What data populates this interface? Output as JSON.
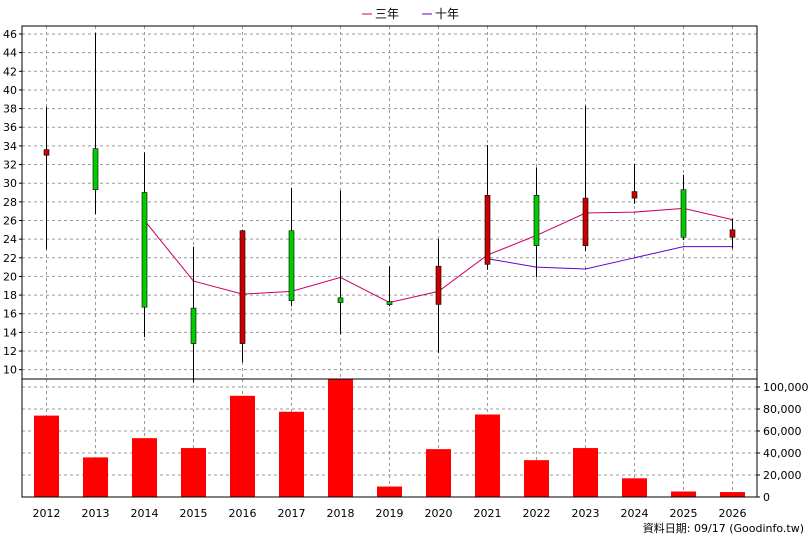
{
  "chart_data": {
    "type": "candlestick+bar",
    "categories": [
      "2012",
      "2013",
      "2014",
      "2015",
      "2016",
      "2017",
      "2018",
      "2019",
      "2020",
      "2021",
      "2022",
      "2023",
      "2024",
      "2025",
      "2026"
    ],
    "legend": [
      {
        "name": "三年",
        "color": "#cc0066"
      },
      {
        "name": "十年",
        "color": "#6600cc"
      }
    ],
    "price_axis": {
      "ylim": [
        10,
        46
      ],
      "ticks": [
        10,
        12,
        14,
        16,
        18,
        20,
        22,
        24,
        26,
        28,
        30,
        32,
        34,
        36,
        38,
        40,
        42,
        44,
        46
      ]
    },
    "volume_axis": {
      "ylim": [
        0,
        100000
      ],
      "ticks": [
        0,
        20000,
        40000,
        60000,
        80000,
        100000
      ],
      "tick_labels": [
        "0",
        "20,000",
        "40,000",
        "60,000",
        "80,000",
        "100,000"
      ]
    },
    "candles": [
      {
        "year": "2012",
        "open": 33.6,
        "close": 33.0,
        "high": 38.2,
        "low": 22.9
      },
      {
        "year": "2013",
        "open": 29.3,
        "close": 33.7,
        "high": 46.1,
        "low": 26.7
      },
      {
        "year": "2014",
        "open": 16.7,
        "close": 29.0,
        "high": 33.3,
        "low": 13.5
      },
      {
        "year": "2015",
        "open": 12.8,
        "close": 16.6,
        "high": 23.2,
        "low": 8.6
      },
      {
        "year": "2016",
        "open": 24.9,
        "close": 12.8,
        "high": 25.0,
        "low": 10.8
      },
      {
        "year": "2017",
        "open": 17.4,
        "close": 24.9,
        "high": 29.5,
        "low": 16.8
      },
      {
        "year": "2018",
        "open": 17.2,
        "close": 17.7,
        "high": 29.2,
        "low": 13.8
      },
      {
        "year": "2019",
        "open": 17.2,
        "close": 17.3,
        "high": 21.1,
        "low": 16.8
      },
      {
        "year": "2020",
        "open": 21.1,
        "close": 17.0,
        "high": 24.0,
        "low": 11.8
      },
      {
        "year": "2021",
        "open": 28.7,
        "close": 21.3,
        "high": 34.1,
        "low": 20.7
      },
      {
        "year": "2022",
        "open": 23.3,
        "close": 28.7,
        "high": 31.7,
        "low": 19.9
      },
      {
        "year": "2023",
        "open": 28.4,
        "close": 23.3,
        "high": 38.3,
        "low": 22.7
      },
      {
        "year": "2024",
        "open": 29.1,
        "close": 28.4,
        "high": 32.1,
        "low": 27.8
      },
      {
        "year": "2025",
        "open": 24.2,
        "close": 29.3,
        "high": 30.9,
        "low": 23.9
      },
      {
        "year": "2026",
        "open": 25.0,
        "close": 24.2,
        "high": 26.2,
        "low": 23.0
      }
    ],
    "series": [
      {
        "name": "三年",
        "color": "#cc0066",
        "values": [
          null,
          null,
          26.0,
          19.5,
          18.1,
          18.4,
          19.9,
          17.2,
          18.4,
          22.3,
          24.4,
          26.8,
          26.9,
          27.3,
          26.1
        ]
      },
      {
        "name": "十年",
        "color": "#6600cc",
        "values": [
          null,
          null,
          null,
          null,
          null,
          null,
          null,
          null,
          null,
          21.9,
          21.0,
          20.8,
          22.0,
          23.2,
          23.2
        ]
      }
    ],
    "volume": [
      74000,
      36000,
      53500,
      44500,
      92000,
      77500,
      107000,
      9500,
      43500,
      75000,
      33500,
      44500,
      17000,
      5000,
      4500
    ],
    "grid": true,
    "up_color": "#00cc00",
    "down_color": "#cc0000",
    "volume_color": "#ff0000",
    "source_note": "資料日期: 09/17  (Goodinfo.tw)"
  }
}
